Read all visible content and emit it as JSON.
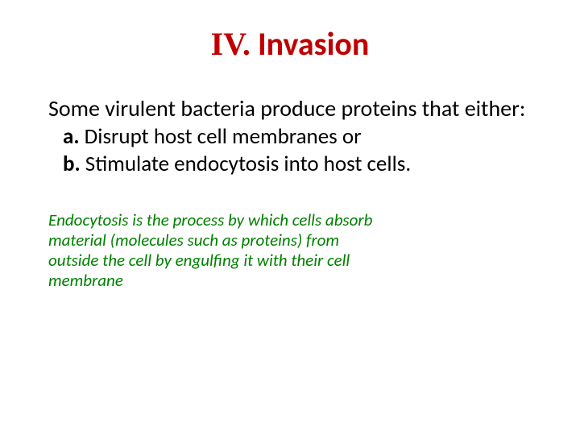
{
  "title": {
    "roman": "IV.",
    "word": " Invasion",
    "roman_color": "#c00000",
    "word_color": "#c00000",
    "roman_font": "Times New Roman",
    "fontsize": 40,
    "fontweight": "bold"
  },
  "intro": {
    "text": "Some virulent bacteria produce proteins that either:",
    "fontsize": 28,
    "color": "#000000"
  },
  "items": [
    {
      "label": "a.",
      "text": " Disrupt host cell membranes or"
    },
    {
      "label": "b.",
      "text": " Stimulate endocytosis into host cells."
    }
  ],
  "definition": {
    "text": "Endocytosis is the process by which cells absorb material (molecules such as proteins) from outside the cell by engulfing it with their cell membrane",
    "fontsize": 21,
    "color": "#008000",
    "fontstyle": "italic"
  },
  "background_color": "#ffffff"
}
